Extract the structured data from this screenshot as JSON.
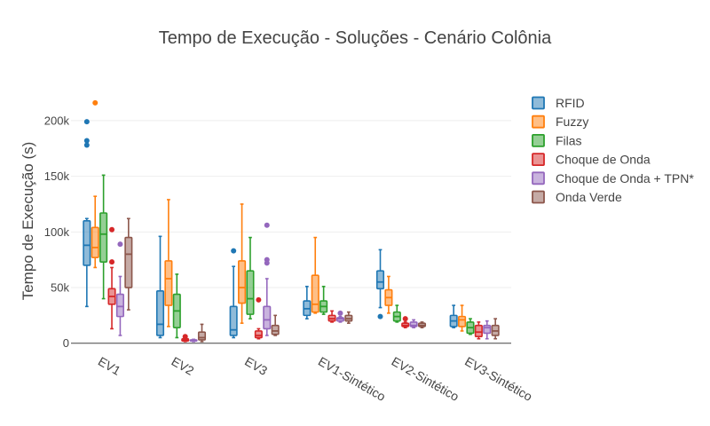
{
  "chart_data": {
    "type": "box",
    "title": "Tempo de Execução - Soluções - Cenário Colônia",
    "xlabel": "",
    "ylabel": "Tempo de Execução (s)",
    "ylim": [
      -5000,
      235000
    ],
    "yticks": [
      0,
      50000,
      100000,
      150000,
      200000
    ],
    "ytick_labels": [
      "0",
      "50k",
      "100k",
      "150k",
      "200k"
    ],
    "categories": [
      "EV1",
      "EV2",
      "EV3",
      "EV1-Sintético",
      "EV2-Sintético",
      "EV3-Sintético"
    ],
    "grid": true,
    "legend_position": "top-right",
    "series": [
      {
        "name": "RFID",
        "color": "#1f77b4",
        "boxes": [
          {
            "min": 33000,
            "q1": 70000,
            "median": 88000,
            "q3": 110000,
            "max": 112000,
            "outliers": [
              199000,
              182000,
              178000
            ]
          },
          {
            "min": 5000,
            "q1": 7000,
            "median": 17000,
            "q3": 47000,
            "max": 96000,
            "outliers": []
          },
          {
            "min": 5000,
            "q1": 7000,
            "median": 12000,
            "q3": 33000,
            "max": 69000,
            "outliers": [
              83000
            ]
          },
          {
            "min": 22000,
            "q1": 25000,
            "median": 31000,
            "q3": 38000,
            "max": 51000,
            "outliers": []
          },
          {
            "min": 32000,
            "q1": 49000,
            "median": 55000,
            "q3": 65000,
            "max": 84000,
            "outliers": [
              24000
            ]
          },
          {
            "min": 14000,
            "q1": 15000,
            "median": 20000,
            "q3": 25000,
            "max": 34000,
            "outliers": []
          }
        ]
      },
      {
        "name": "Fuzzy",
        "color": "#ff7f0e",
        "boxes": [
          {
            "min": 68000,
            "q1": 77000,
            "median": 86000,
            "q3": 104000,
            "max": 132000,
            "outliers": [
              216000
            ]
          },
          {
            "min": 15000,
            "q1": 34000,
            "median": 58000,
            "q3": 74000,
            "max": 129000,
            "outliers": []
          },
          {
            "min": 18000,
            "q1": 36000,
            "median": 50000,
            "q3": 74000,
            "max": 125000,
            "outliers": []
          },
          {
            "min": 27000,
            "q1": 28000,
            "median": 35000,
            "q3": 61000,
            "max": 95000,
            "outliers": []
          },
          {
            "min": 27000,
            "q1": 34000,
            "median": 41000,
            "q3": 48000,
            "max": 60000,
            "outliers": []
          },
          {
            "min": 11000,
            "q1": 15000,
            "median": 21000,
            "q3": 24000,
            "max": 34000,
            "outliers": []
          }
        ]
      },
      {
        "name": "Filas",
        "color": "#2ca02c",
        "boxes": [
          {
            "min": 40000,
            "q1": 73000,
            "median": 98000,
            "q3": 117000,
            "max": 151000,
            "outliers": []
          },
          {
            "min": 5000,
            "q1": 14000,
            "median": 29000,
            "q3": 44000,
            "max": 62000,
            "outliers": []
          },
          {
            "min": 22000,
            "q1": 26000,
            "median": 40000,
            "q3": 65000,
            "max": 95000,
            "outliers": []
          },
          {
            "min": 26000,
            "q1": 28000,
            "median": 33000,
            "q3": 38000,
            "max": 51000,
            "outliers": []
          },
          {
            "min": 19000,
            "q1": 20000,
            "median": 24000,
            "q3": 28000,
            "max": 34000,
            "outliers": []
          },
          {
            "min": 8000,
            "q1": 9000,
            "median": 14000,
            "q3": 19000,
            "max": 22000,
            "outliers": []
          }
        ]
      },
      {
        "name": "Choque de Onda",
        "color": "#d62728",
        "boxes": [
          {
            "min": 13000,
            "q1": 35000,
            "median": 42000,
            "q3": 49000,
            "max": 68000,
            "outliers": [
              102000,
              73000
            ]
          },
          {
            "min": 1500,
            "q1": 2000,
            "median": 3000,
            "q3": 4000,
            "max": 5000,
            "outliers": [
              6000
            ]
          },
          {
            "min": 4000,
            "q1": 5000,
            "median": 7000,
            "q3": 11000,
            "max": 13000,
            "outliers": [
              39000
            ]
          },
          {
            "min": 19000,
            "q1": 20000,
            "median": 22000,
            "q3": 25000,
            "max": 29000,
            "outliers": []
          },
          {
            "min": 14000,
            "q1": 15000,
            "median": 16000,
            "q3": 18000,
            "max": 19000,
            "outliers": [
              22000
            ]
          },
          {
            "min": 4000,
            "q1": 6000,
            "median": 10000,
            "q3": 16000,
            "max": 19000,
            "outliers": []
          }
        ]
      },
      {
        "name": "Choque de Onda + TPN*",
        "color": "#9467bd",
        "boxes": [
          {
            "min": 7000,
            "q1": 24000,
            "median": 33000,
            "q3": 44000,
            "max": 60000,
            "outliers": [
              89000
            ]
          },
          {
            "min": 1500,
            "q1": 2000,
            "median": 2500,
            "q3": 3000,
            "max": 3500,
            "outliers": []
          },
          {
            "min": 7000,
            "q1": 13000,
            "median": 21000,
            "q3": 33000,
            "max": 58000,
            "outliers": [
              106000,
              75000,
              72000
            ]
          },
          {
            "min": 19000,
            "q1": 20000,
            "median": 22000,
            "q3": 23000,
            "max": 24000,
            "outliers": [
              27000
            ]
          },
          {
            "min": 14000,
            "q1": 15000,
            "median": 16000,
            "q3": 19000,
            "max": 21000,
            "outliers": []
          },
          {
            "min": 4000,
            "q1": 9000,
            "median": 14000,
            "q3": 16000,
            "max": 20000,
            "outliers": []
          }
        ]
      },
      {
        "name": "Onda Verde",
        "color": "#8c564b",
        "boxes": [
          {
            "min": 30000,
            "q1": 50000,
            "median": 80000,
            "q3": 95000,
            "max": 112000,
            "outliers": []
          },
          {
            "min": 1500,
            "q1": 3000,
            "median": 5000,
            "q3": 10000,
            "max": 17000,
            "outliers": []
          },
          {
            "min": 7000,
            "q1": 8000,
            "median": 11000,
            "q3": 16000,
            "max": 25000,
            "outliers": []
          },
          {
            "min": 18000,
            "q1": 20000,
            "median": 22000,
            "q3": 25000,
            "max": 28000,
            "outliers": []
          },
          {
            "min": 14000,
            "q1": 15000,
            "median": 16000,
            "q3": 18000,
            "max": 19000,
            "outliers": []
          },
          {
            "min": 4000,
            "q1": 7000,
            "median": 11000,
            "q3": 16000,
            "max": 22000,
            "outliers": []
          }
        ]
      }
    ]
  }
}
